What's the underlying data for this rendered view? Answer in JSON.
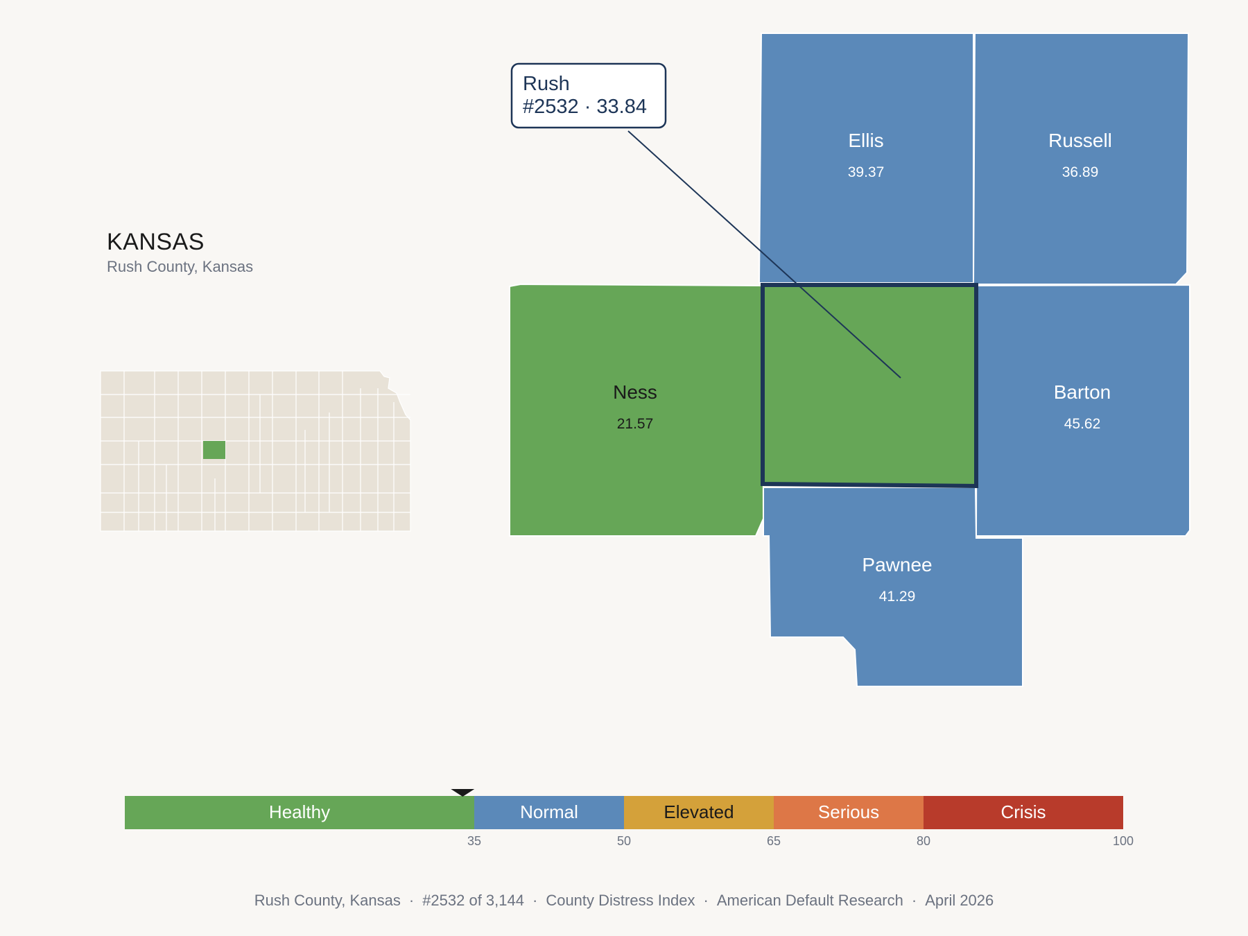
{
  "header": {
    "state_name": "KANSAS",
    "subtitle": "Rush County, Kansas"
  },
  "callout": {
    "name": "Rush",
    "detail": "#2532 · 33.84"
  },
  "counties": [
    {
      "key": "ellis",
      "name": "Ellis",
      "value": "39.37",
      "status": "Normal"
    },
    {
      "key": "russell",
      "name": "Russell",
      "value": "36.89",
      "status": "Normal"
    },
    {
      "key": "ness",
      "name": "Ness",
      "value": "21.57",
      "status": "Healthy"
    },
    {
      "key": "rush",
      "name": "Rush",
      "value": "33.84",
      "status": "Healthy",
      "selected": true
    },
    {
      "key": "barton",
      "name": "Barton",
      "value": "45.62",
      "status": "Normal"
    },
    {
      "key": "pawnee",
      "name": "Pawnee",
      "value": "41.29",
      "status": "Normal"
    }
  ],
  "legend": {
    "marker_value": 33.84,
    "bands": [
      {
        "label": "Healthy",
        "from": 0,
        "to": 35,
        "color": "#66a657"
      },
      {
        "label": "Normal",
        "from": 35,
        "to": 50,
        "color": "#5b89b9"
      },
      {
        "label": "Elevated",
        "from": 50,
        "to": 65,
        "color": "#d4a13a"
      },
      {
        "label": "Serious",
        "from": 65,
        "to": 80,
        "color": "#dd7747"
      },
      {
        "label": "Crisis",
        "from": 80,
        "to": 100,
        "color": "#b83b2b"
      }
    ],
    "ticks": [
      "35",
      "50",
      "65",
      "80",
      "100"
    ]
  },
  "footer": {
    "items": [
      "Rush County, Kansas",
      "#2532 of 3,144",
      "County Distress Index",
      "American Default Research",
      "April 2026"
    ]
  },
  "colors": {
    "healthy": "#66a657",
    "normal": "#5b89b9",
    "highlight_border": "#1d3557",
    "locator_fill": "#e8e2d7",
    "background": "#f9f7f4"
  }
}
